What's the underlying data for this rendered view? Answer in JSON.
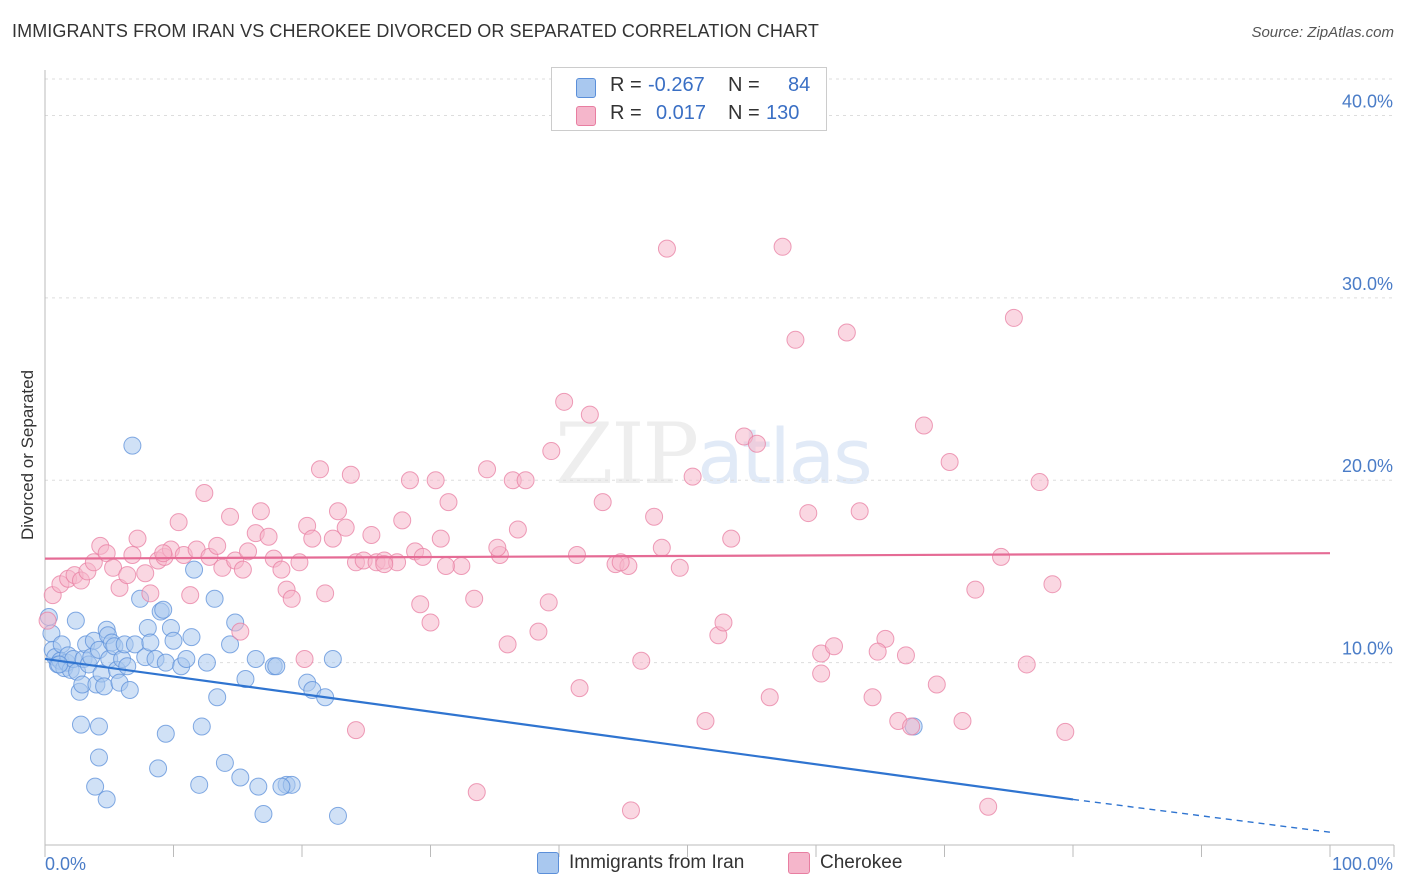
{
  "header": {
    "title": "IMMIGRANTS FROM IRAN VS CHEROKEE DIVORCED OR SEPARATED CORRELATION CHART",
    "source": "Source: ZipAtlas.com"
  },
  "watermark": {
    "zip": "ZIP",
    "atlas": "atlas"
  },
  "legend": {
    "rows": [
      {
        "r_label": "R =",
        "r_value": "-0.267",
        "n_label": "N =",
        "n_value": "84",
        "color": "#a9c8ef"
      },
      {
        "r_label": "R =",
        "r_value": "0.017",
        "n_label": "N =",
        "n_value": "130",
        "color": "#f5b6cb"
      }
    ]
  },
  "bottom_legend": {
    "items": [
      {
        "label": "Immigrants from Iran",
        "color": "#a9c8ef"
      },
      {
        "label": "Cherokee",
        "color": "#f5b6cb"
      }
    ]
  },
  "chart_data": {
    "type": "scatter",
    "title": "IMMIGRANTS FROM IRAN VS CHEROKEE DIVORCED OR SEPARATED CORRELATION CHART",
    "ylabel": "Divorced or Separated",
    "xlabel": "",
    "xlim": [
      0,
      100
    ],
    "ylim": [
      0,
      42
    ],
    "x_tick_labels": [
      "0.0%",
      "100.0%"
    ],
    "y_ticks": [
      10,
      20,
      30,
      40
    ],
    "y_tick_labels": [
      "10.0%",
      "20.0%",
      "30.0%",
      "40.0%"
    ],
    "grid": true,
    "legend_position": "top-center",
    "series": [
      {
        "name": "Immigrants from Iran",
        "color": "#5b8fd9",
        "fill": "#a9c8ef",
        "trend": {
          "x": [
            0,
            80
          ],
          "y": [
            10.2,
            2.5
          ],
          "dashed_to": [
            100,
            0.7
          ],
          "color": "#2f74d0"
        },
        "points": [
          [
            0.3,
            12.5
          ],
          [
            0.5,
            11.6
          ],
          [
            0.6,
            10.7
          ],
          [
            0.8,
            10.3
          ],
          [
            1.0,
            9.9
          ],
          [
            1.2,
            10.1
          ],
          [
            1.3,
            11.0
          ],
          [
            1.5,
            9.7
          ],
          [
            1.7,
            10.0
          ],
          [
            1.8,
            10.4
          ],
          [
            2.0,
            9.6
          ],
          [
            2.2,
            10.2
          ],
          [
            2.4,
            12.3
          ],
          [
            2.5,
            9.5
          ],
          [
            2.7,
            8.4
          ],
          [
            2.9,
            8.8
          ],
          [
            3.0,
            10.2
          ],
          [
            3.2,
            11.0
          ],
          [
            3.4,
            9.9
          ],
          [
            3.6,
            10.3
          ],
          [
            3.8,
            11.2
          ],
          [
            4.0,
            8.8
          ],
          [
            4.2,
            10.7
          ],
          [
            4.4,
            9.4
          ],
          [
            4.6,
            8.7
          ],
          [
            4.8,
            11.8
          ],
          [
            4.9,
            11.5
          ],
          [
            5.0,
            10.2
          ],
          [
            5.2,
            11.1
          ],
          [
            5.4,
            10.9
          ],
          [
            5.6,
            9.6
          ],
          [
            5.8,
            8.9
          ],
          [
            6.0,
            10.2
          ],
          [
            6.2,
            11.0
          ],
          [
            6.4,
            9.8
          ],
          [
            6.6,
            8.5
          ],
          [
            6.8,
            21.9
          ],
          [
            7.0,
            11.0
          ],
          [
            7.4,
            13.5
          ],
          [
            7.8,
            10.3
          ],
          [
            8.0,
            11.9
          ],
          [
            8.2,
            11.1
          ],
          [
            8.6,
            10.2
          ],
          [
            9.0,
            12.8
          ],
          [
            9.2,
            12.9
          ],
          [
            9.4,
            10.0
          ],
          [
            9.8,
            11.9
          ],
          [
            10.0,
            11.2
          ],
          [
            10.6,
            9.8
          ],
          [
            11.0,
            10.2
          ],
          [
            11.4,
            11.4
          ],
          [
            11.6,
            15.1
          ],
          [
            12.2,
            6.5
          ],
          [
            12.6,
            10.0
          ],
          [
            13.2,
            13.5
          ],
          [
            13.4,
            8.1
          ],
          [
            14.0,
            4.5
          ],
          [
            14.4,
            11.0
          ],
          [
            14.8,
            12.2
          ],
          [
            15.2,
            3.7
          ],
          [
            15.6,
            9.1
          ],
          [
            16.4,
            10.2
          ],
          [
            16.6,
            3.2
          ],
          [
            17.0,
            1.7
          ],
          [
            17.8,
            9.8
          ],
          [
            18.0,
            9.8
          ],
          [
            18.8,
            3.3
          ],
          [
            19.2,
            3.3
          ],
          [
            18.4,
            3.2
          ],
          [
            20.4,
            8.9
          ],
          [
            20.8,
            8.5
          ],
          [
            21.8,
            8.1
          ],
          [
            22.4,
            10.2
          ],
          [
            22.8,
            1.6
          ],
          [
            12.0,
            3.3
          ],
          [
            9.4,
            6.1
          ],
          [
            8.8,
            4.2
          ],
          [
            4.2,
            4.8
          ],
          [
            3.9,
            3.2
          ],
          [
            4.8,
            2.5
          ],
          [
            2.8,
            6.6
          ],
          [
            4.2,
            6.5
          ],
          [
            67.6,
            6.5
          ],
          [
            1.1,
            9.9
          ]
        ]
      },
      {
        "name": "Cherokee",
        "color": "#e87ea1",
        "fill": "#f5b6cb",
        "trend": {
          "x": [
            0,
            100
          ],
          "y": [
            15.7,
            16.0
          ],
          "color": "#e56b95"
        },
        "points": [
          [
            0.2,
            12.3
          ],
          [
            0.6,
            13.7
          ],
          [
            1.2,
            14.3
          ],
          [
            1.8,
            14.6
          ],
          [
            2.3,
            14.8
          ],
          [
            2.8,
            14.5
          ],
          [
            3.3,
            15.0
          ],
          [
            3.8,
            15.5
          ],
          [
            4.3,
            16.4
          ],
          [
            4.8,
            16.0
          ],
          [
            5.3,
            15.2
          ],
          [
            5.8,
            14.1
          ],
          [
            6.4,
            14.8
          ],
          [
            6.8,
            15.9
          ],
          [
            7.2,
            16.8
          ],
          [
            7.8,
            14.9
          ],
          [
            8.2,
            13.8
          ],
          [
            8.8,
            15.6
          ],
          [
            9.3,
            15.8
          ],
          [
            9.8,
            16.2
          ],
          [
            10.4,
            17.7
          ],
          [
            10.8,
            15.9
          ],
          [
            11.3,
            13.7
          ],
          [
            11.8,
            16.2
          ],
          [
            12.4,
            19.3
          ],
          [
            12.8,
            15.8
          ],
          [
            13.4,
            16.4
          ],
          [
            13.8,
            15.2
          ],
          [
            14.4,
            18.0
          ],
          [
            14.8,
            15.6
          ],
          [
            15.4,
            15.1
          ],
          [
            15.8,
            16.1
          ],
          [
            16.4,
            17.1
          ],
          [
            16.8,
            18.3
          ],
          [
            17.4,
            16.9
          ],
          [
            17.8,
            15.7
          ],
          [
            18.4,
            15.1
          ],
          [
            18.8,
            14.0
          ],
          [
            19.2,
            13.5
          ],
          [
            19.8,
            15.5
          ],
          [
            20.4,
            17.5
          ],
          [
            20.8,
            16.8
          ],
          [
            21.4,
            20.6
          ],
          [
            21.8,
            13.8
          ],
          [
            22.4,
            16.8
          ],
          [
            22.8,
            18.3
          ],
          [
            23.4,
            17.4
          ],
          [
            23.8,
            20.3
          ],
          [
            24.2,
            15.5
          ],
          [
            24.8,
            15.6
          ],
          [
            25.4,
            17.0
          ],
          [
            25.8,
            15.5
          ],
          [
            26.4,
            15.6
          ],
          [
            27.4,
            15.5
          ],
          [
            27.8,
            17.8
          ],
          [
            28.4,
            20.0
          ],
          [
            28.8,
            16.1
          ],
          [
            29.4,
            15.8
          ],
          [
            30.4,
            20.0
          ],
          [
            30.8,
            16.8
          ],
          [
            31.4,
            18.8
          ],
          [
            32.4,
            15.3
          ],
          [
            33.4,
            13.5
          ],
          [
            34.4,
            20.6
          ],
          [
            35.4,
            15.9
          ],
          [
            36.4,
            20.0
          ],
          [
            36.8,
            17.3
          ],
          [
            37.4,
            20.0
          ],
          [
            38.4,
            11.7
          ],
          [
            39.4,
            21.6
          ],
          [
            40.4,
            24.3
          ],
          [
            41.4,
            15.9
          ],
          [
            42.4,
            23.6
          ],
          [
            43.4,
            18.8
          ],
          [
            44.4,
            15.4
          ],
          [
            45.4,
            15.3
          ],
          [
            46.4,
            10.1
          ],
          [
            47.4,
            18.0
          ],
          [
            48.4,
            32.7
          ],
          [
            49.4,
            15.2
          ],
          [
            50.4,
            20.2
          ],
          [
            51.4,
            6.8
          ],
          [
            52.4,
            11.5
          ],
          [
            53.4,
            16.8
          ],
          [
            54.4,
            22.4
          ],
          [
            55.4,
            22.0
          ],
          [
            56.4,
            8.1
          ],
          [
            57.4,
            32.8
          ],
          [
            58.4,
            27.7
          ],
          [
            59.4,
            18.2
          ],
          [
            60.4,
            10.5
          ],
          [
            61.4,
            10.9
          ],
          [
            62.4,
            28.1
          ],
          [
            63.4,
            18.3
          ],
          [
            64.4,
            8.1
          ],
          [
            65.4,
            11.3
          ],
          [
            66.4,
            6.8
          ],
          [
            67.4,
            6.5
          ],
          [
            68.4,
            23.0
          ],
          [
            69.4,
            8.8
          ],
          [
            70.4,
            21.0
          ],
          [
            71.4,
            6.8
          ],
          [
            72.4,
            14.0
          ],
          [
            73.4,
            2.1
          ],
          [
            74.4,
            15.8
          ],
          [
            75.4,
            28.9
          ],
          [
            76.4,
            9.9
          ],
          [
            77.4,
            19.9
          ],
          [
            78.4,
            14.3
          ],
          [
            79.4,
            6.2
          ],
          [
            30.0,
            12.2
          ],
          [
            26.4,
            15.4
          ],
          [
            24.2,
            6.3
          ],
          [
            20.2,
            10.2
          ],
          [
            15.2,
            11.7
          ],
          [
            9.2,
            16.0
          ],
          [
            33.6,
            2.9
          ],
          [
            45.6,
            1.9
          ],
          [
            41.6,
            8.6
          ],
          [
            36.0,
            11.0
          ],
          [
            60.4,
            9.4
          ],
          [
            64.8,
            10.6
          ],
          [
            67.0,
            10.4
          ],
          [
            52.8,
            12.2
          ],
          [
            48.0,
            16.3
          ],
          [
            44.8,
            15.5
          ],
          [
            39.2,
            13.3
          ],
          [
            35.2,
            16.3
          ],
          [
            31.2,
            15.3
          ],
          [
            29.2,
            13.2
          ]
        ]
      }
    ]
  }
}
